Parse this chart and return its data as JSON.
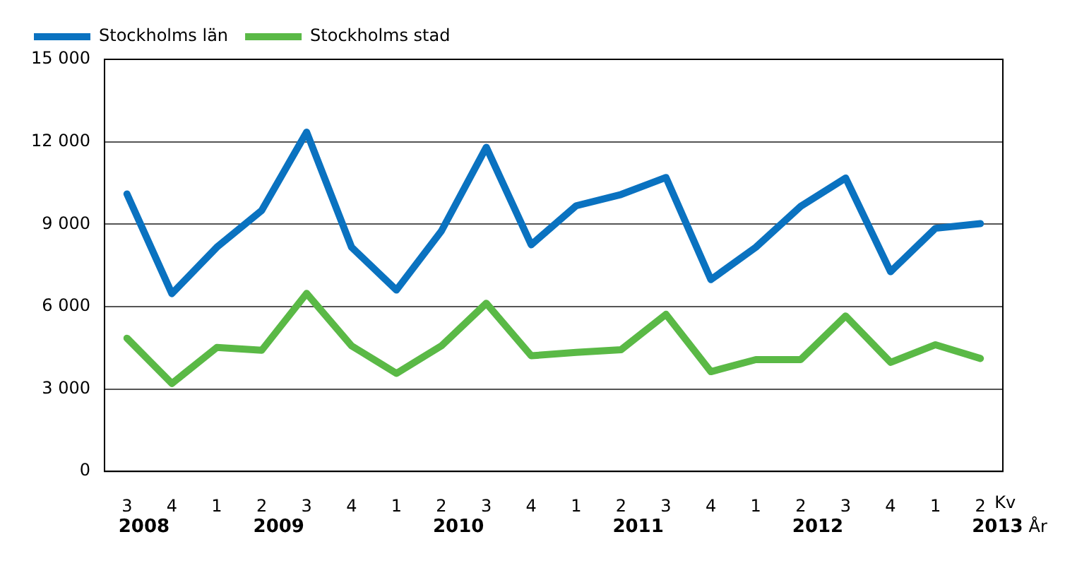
{
  "chart_data": {
    "type": "line",
    "categories": [
      "3\n2008",
      "4",
      "1",
      "2\n2009",
      "3",
      "4",
      "1",
      "2\n2010",
      "3",
      "4",
      "1",
      "2\n2011",
      "3",
      "4",
      "1",
      "2\n2012",
      "3",
      "4",
      "1",
      "2\n2013"
    ],
    "xlabel": "Kv",
    "annotations": [
      "År"
    ],
    "series": [
      {
        "name": "Stockholms län",
        "color": "#0a72c0",
        "values": [
          10100,
          6470,
          8160,
          9500,
          12350,
          8160,
          6600,
          8750,
          11800,
          8250,
          9670,
          10080,
          10700,
          6980,
          8160,
          9650,
          10680,
          7270,
          8850,
          9020
        ]
      },
      {
        "name": "Stockholms stad",
        "color": "#5ab946",
        "values": [
          4850,
          3200,
          4510,
          4410,
          6480,
          4570,
          3570,
          4570,
          6120,
          4210,
          4330,
          4430,
          5720,
          3630,
          4070,
          4070,
          5660,
          3970,
          4610,
          4110
        ]
      }
    ],
    "ylim": [
      0,
      15000
    ],
    "yticks": [
      {
        "value": 0,
        "label": "0"
      },
      {
        "value": 3000,
        "label": "3 000"
      },
      {
        "value": 6000,
        "label": "6 000"
      },
      {
        "value": 9000,
        "label": "9 000"
      },
      {
        "value": 12000,
        "label": "12 000"
      },
      {
        "value": 15000,
        "label": "15 000"
      }
    ],
    "grid": "y",
    "legend": "top left",
    "marker": "none",
    "line_style": "solid"
  }
}
